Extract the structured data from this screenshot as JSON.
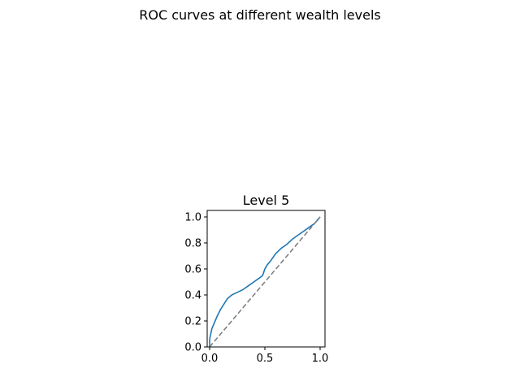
{
  "figure": {
    "suptitle": "ROC curves at different wealth levels"
  },
  "chart_data": {
    "type": "line",
    "title": "Level 5",
    "xlabel": "",
    "ylabel": "",
    "xlim": [
      0.0,
      1.0
    ],
    "ylim": [
      0.0,
      1.0
    ],
    "xticks": [
      "0.0",
      "0.5",
      "1.0"
    ],
    "yticks": [
      "0.0",
      "0.2",
      "0.4",
      "0.6",
      "0.8",
      "1.0"
    ],
    "grid": false,
    "legend": "none",
    "series": [
      {
        "color": "#1f77b4",
        "style": "solid",
        "x": [
          0.0,
          0.0,
          0.01,
          0.02,
          0.03,
          0.05,
          0.07,
          0.1,
          0.13,
          0.16,
          0.2,
          0.25,
          0.3,
          0.35,
          0.4,
          0.45,
          0.48,
          0.5,
          0.52,
          0.55,
          0.6,
          0.65,
          0.7,
          0.75,
          0.8,
          0.85,
          0.9,
          0.95,
          0.98,
          1.0
        ],
        "y": [
          0.0,
          0.06,
          0.1,
          0.14,
          0.16,
          0.2,
          0.24,
          0.29,
          0.33,
          0.37,
          0.4,
          0.42,
          0.44,
          0.47,
          0.5,
          0.53,
          0.55,
          0.6,
          0.63,
          0.66,
          0.72,
          0.76,
          0.79,
          0.83,
          0.86,
          0.89,
          0.92,
          0.95,
          0.98,
          1.0
        ]
      },
      {
        "color": "#808080",
        "style": "dashed",
        "x": [
          0.0,
          1.0
        ],
        "y": [
          0.0,
          1.0
        ]
      }
    ]
  }
}
